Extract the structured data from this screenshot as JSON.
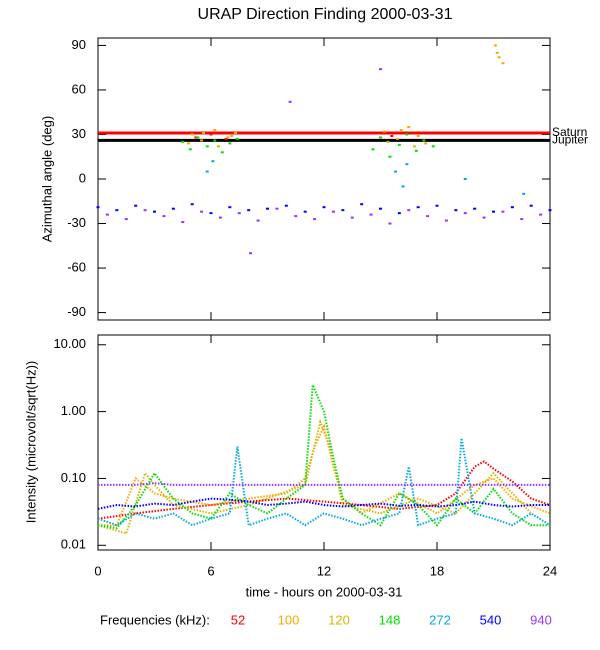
{
  "chart_data": [
    {
      "type": "scatter",
      "title": "URAP Direction Finding  2000-03-31",
      "ylabel": "Azimuthal angle (deg)",
      "xlim": [
        0,
        24
      ],
      "xticks": [
        0,
        6,
        12,
        18,
        24
      ],
      "ylim": [
        -95,
        95
      ],
      "yticks": [
        -90,
        -60,
        -30,
        0,
        30,
        60,
        90
      ],
      "reference_lines": [
        {
          "label": "Saturn",
          "value": 31,
          "color": "#ff0000"
        },
        {
          "label": "Jupiter",
          "value": 26,
          "color": "#000000"
        }
      ],
      "series": [
        {
          "name": "52",
          "color": "#ff0000",
          "x": [
            5.2,
            6.0,
            6.8,
            15.6,
            16.3
          ],
          "values": [
            28,
            30,
            27,
            29,
            31
          ]
        },
        {
          "name": "100",
          "color": "#ffa500",
          "x": [
            5.0,
            5.5,
            6.2,
            6.9,
            7.3,
            15.2,
            15.9,
            16.5,
            17.0,
            17.4,
            21.1,
            21.3,
            21.5
          ],
          "values": [
            30,
            26,
            33,
            28,
            31,
            32,
            27,
            35,
            29,
            24,
            90,
            82,
            78
          ]
        },
        {
          "name": "120",
          "color": "#d4b800",
          "x": [
            4.8,
            5.6,
            6.4,
            7.1,
            15.4,
            16.1,
            16.8,
            21.2
          ],
          "values": [
            24,
            31,
            22,
            29,
            25,
            33,
            22,
            85
          ]
        },
        {
          "name": "148",
          "color": "#00e000",
          "x": [
            4.5,
            4.9,
            5.3,
            5.8,
            6.2,
            6.6,
            7.0,
            7.4,
            14.6,
            15.0,
            15.5,
            16.0,
            16.4,
            16.9,
            17.3,
            17.8
          ],
          "values": [
            25,
            20,
            28,
            22,
            26,
            18,
            24,
            27,
            20,
            28,
            15,
            23,
            30,
            19,
            26,
            22
          ]
        },
        {
          "name": "272",
          "color": "#00a8e8",
          "x": [
            5.8,
            6.1,
            15.8,
            16.2,
            16.4,
            19.5,
            22.6
          ],
          "values": [
            5,
            12,
            5,
            -5,
            10,
            0,
            -10
          ]
        },
        {
          "name": "540",
          "color": "#0000ff",
          "x": [
            0,
            1,
            2,
            3,
            4,
            5,
            6,
            7,
            8,
            9,
            10,
            11,
            12,
            13,
            14,
            15,
            16,
            17,
            18,
            19,
            20,
            21,
            22,
            23,
            24
          ],
          "values": [
            -19,
            -21,
            -18,
            -22,
            -20,
            -17,
            -23,
            -19,
            -21,
            -20,
            -18,
            -22,
            -19,
            -21,
            -17,
            -20,
            -23,
            -19,
            -18,
            -21,
            -20,
            -22,
            -19,
            -18,
            -21
          ]
        },
        {
          "name": "940",
          "color": "#9933ff",
          "x": [
            0.5,
            1.5,
            2.5,
            3.5,
            4.5,
            5.5,
            6.5,
            7.5,
            8.5,
            9.5,
            10.5,
            11.5,
            12.5,
            13.5,
            14.5,
            15.5,
            16.5,
            17.5,
            18.5,
            19.5,
            20.5,
            21.5,
            22.5,
            23.5,
            8.1,
            10.2,
            15.0
          ],
          "values": [
            -24,
            -27,
            -21,
            -25,
            -29,
            -22,
            -26,
            -23,
            -28,
            -20,
            -25,
            -27,
            -22,
            -26,
            -24,
            -30,
            -21,
            -25,
            -28,
            -23,
            -26,
            -22,
            -27,
            -24,
            -50,
            52,
            74
          ]
        }
      ]
    },
    {
      "type": "line",
      "ylabel": "Intensity (microvolt/sqrt(Hz))",
      "xlabel": "time - hours on 2000-03-31",
      "log_y": true,
      "legend_title": "Frequencies (kHz):",
      "xlim": [
        0,
        24
      ],
      "xticks": [
        0,
        6,
        12,
        18,
        24
      ],
      "ylim": [
        0.0085,
        14
      ],
      "yticks": [
        {
          "value": 0.01,
          "label": "0.01"
        },
        {
          "value": 0.1,
          "label": "0.10"
        },
        {
          "value": 1,
          "label": "1.00"
        },
        {
          "value": 10,
          "label": "10.00"
        }
      ],
      "series": [
        {
          "name": "52",
          "color": "#ff0000",
          "x": [
            0,
            2,
            4,
            6,
            8,
            10,
            12,
            14,
            16,
            18,
            19,
            20,
            20.5,
            21,
            22,
            23,
            24
          ],
          "values": [
            0.025,
            0.03,
            0.035,
            0.04,
            0.045,
            0.05,
            0.045,
            0.04,
            0.035,
            0.04,
            0.06,
            0.15,
            0.18,
            0.14,
            0.09,
            0.05,
            0.04
          ]
        },
        {
          "name": "100",
          "color": "#ffa500",
          "x": [
            0,
            1,
            2,
            3,
            4,
            6,
            8,
            10,
            11,
            11.5,
            12,
            12.5,
            13,
            14,
            16,
            18,
            20,
            21,
            22,
            24
          ],
          "values": [
            0.02,
            0.02,
            0.1,
            0.06,
            0.05,
            0.04,
            0.05,
            0.06,
            0.1,
            0.3,
            0.6,
            0.15,
            0.05,
            0.03,
            0.06,
            0.03,
            0.08,
            0.1,
            0.05,
            0.03
          ]
        },
        {
          "name": "120",
          "color": "#d4b800",
          "x": [
            0,
            1.5,
            2.5,
            3,
            4,
            6,
            8,
            11,
            11.8,
            12.3,
            13,
            15,
            17,
            19,
            21,
            23
          ],
          "values": [
            0.02,
            0.015,
            0.12,
            0.08,
            0.04,
            0.03,
            0.04,
            0.08,
            0.7,
            0.3,
            0.04,
            0.03,
            0.05,
            0.03,
            0.12,
            0.03
          ]
        },
        {
          "name": "148",
          "color": "#00e000",
          "x": [
            0,
            1,
            2,
            3,
            4,
            5,
            6,
            7,
            8,
            9,
            10,
            11,
            11.4,
            12,
            12.5,
            13,
            14,
            15,
            16,
            17,
            18,
            19,
            20,
            21,
            22,
            23,
            24
          ],
          "values": [
            0.02,
            0.018,
            0.04,
            0.12,
            0.05,
            0.03,
            0.025,
            0.06,
            0.04,
            0.03,
            0.05,
            0.08,
            2.5,
            1.0,
            0.2,
            0.05,
            0.03,
            0.02,
            0.06,
            0.04,
            0.02,
            0.05,
            0.03,
            0.07,
            0.03,
            0.02,
            0.02
          ]
        },
        {
          "name": "272",
          "color": "#00a8e8",
          "x": [
            0,
            1,
            2,
            3,
            4,
            5,
            6,
            7,
            7.4,
            8,
            9,
            10,
            11,
            12,
            13,
            14,
            15,
            16,
            16.5,
            17,
            18,
            19,
            19.3,
            20,
            21,
            22,
            23,
            24
          ],
          "values": [
            0.025,
            0.02,
            0.03,
            0.025,
            0.03,
            0.02,
            0.025,
            0.03,
            0.3,
            0.02,
            0.025,
            0.03,
            0.02,
            0.03,
            0.025,
            0.02,
            0.025,
            0.03,
            0.15,
            0.02,
            0.025,
            0.03,
            0.4,
            0.03,
            0.025,
            0.02,
            0.03,
            0.02
          ]
        },
        {
          "name": "540",
          "color": "#0000ff",
          "x": [
            0,
            1,
            2,
            3,
            4,
            5,
            6,
            7,
            8,
            9,
            10,
            11,
            12,
            13,
            14,
            15,
            16,
            17,
            18,
            19,
            20,
            21,
            22,
            23,
            24
          ],
          "values": [
            0.035,
            0.04,
            0.038,
            0.042,
            0.04,
            0.045,
            0.05,
            0.048,
            0.045,
            0.04,
            0.042,
            0.045,
            0.04,
            0.038,
            0.04,
            0.042,
            0.039,
            0.04,
            0.038,
            0.04,
            0.045,
            0.04,
            0.038,
            0.04,
            0.04
          ]
        },
        {
          "name": "940",
          "color": "#9933ff",
          "x": [
            0,
            1,
            2,
            3,
            4,
            5,
            6,
            7,
            8,
            9,
            10,
            11,
            12,
            13,
            14,
            15,
            16,
            17,
            18,
            19,
            20,
            21,
            22,
            23,
            24
          ],
          "values": [
            0.08,
            0.08,
            0.08,
            0.085,
            0.08,
            0.08,
            0.08,
            0.08,
            0.08,
            0.08,
            0.08,
            0.08,
            0.08,
            0.08,
            0.08,
            0.08,
            0.08,
            0.08,
            0.08,
            0.08,
            0.08,
            0.08,
            0.08,
            0.08,
            0.08
          ]
        }
      ]
    }
  ]
}
